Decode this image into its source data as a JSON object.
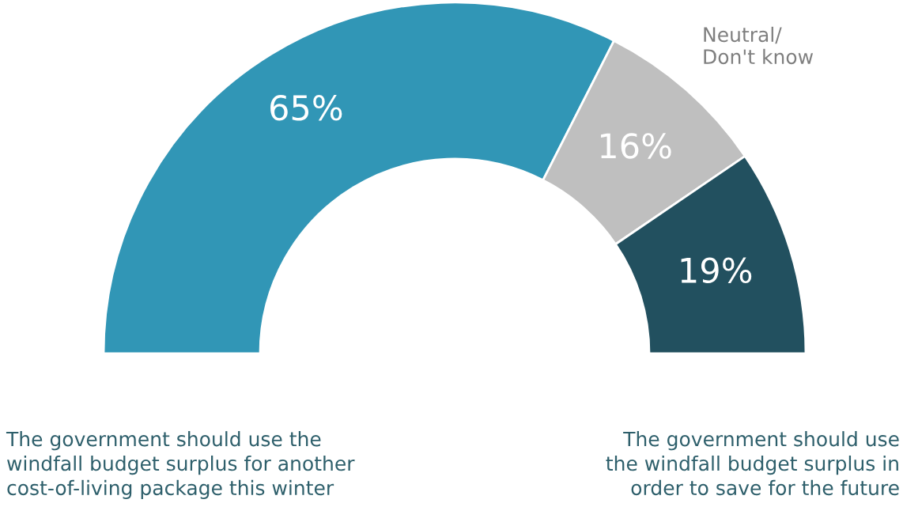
{
  "chart_data": {
    "type": "donut",
    "categories": [
      null,
      "Neutral/\nDon't know",
      null
    ],
    "values": [
      65,
      16,
      19
    ],
    "colors": [
      "#3196b6",
      "#bfbfbf",
      "#22505f"
    ],
    "value_labels": [
      "65%",
      "16%",
      "19%"
    ],
    "annotations": [
      "The government should use the\nwindfall budget surplus for another\ncost-of-living package this winter",
      "The government should use\nthe windfall budget surplus in\norder to save for the future"
    ]
  }
}
